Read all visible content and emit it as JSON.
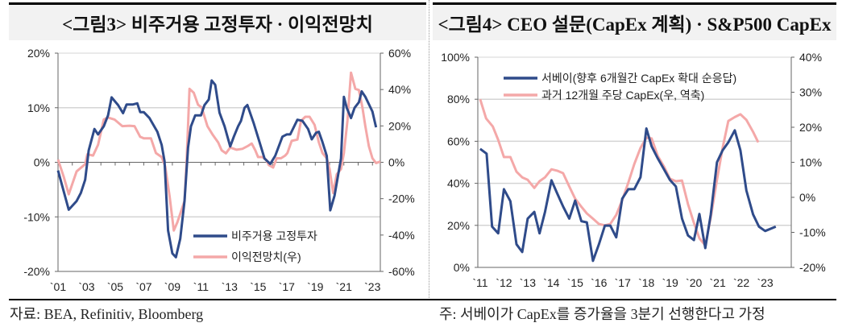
{
  "panels": {
    "left_title": "<그림3> 비주거용 고정투자 · 이익전망치",
    "right_title": "<그림4> CEO 설문(CapEx 계획) · S&P500 CapEx"
  },
  "footer": {
    "source": "자료: BEA, Refinitiv, Bloomberg",
    "note": "주: 서베이가 CapEx를 증가율을 3분기 선행한다고 가정"
  },
  "colors": {
    "blue": "#2f4b8a",
    "pink": "#f4a8a8"
  },
  "chart_data": [
    {
      "type": "line",
      "title": "<그림3> 비주거용 고정투자 · 이익전망치",
      "x_ticks": [
        "`01",
        "`03",
        "`05",
        "`07",
        "`09",
        "`11",
        "`13",
        "`15",
        "`17",
        "`19",
        "`21",
        "`23"
      ],
      "x_tick_values": [
        2001,
        2003,
        2005,
        2007,
        2009,
        2011,
        2013,
        2015,
        2017,
        2019,
        2021,
        2023
      ],
      "xlim": [
        2001,
        2023.55
      ],
      "y_left": {
        "ticks": [
          "20%",
          "10%",
          "0%",
          "-10%",
          "-20%"
        ],
        "lim": [
          -20,
          20
        ]
      },
      "y_right": {
        "ticks": [
          "60%",
          "40%",
          "20%",
          "0%",
          "-20%",
          "-40%",
          "-60%"
        ],
        "lim": [
          -60,
          60
        ]
      },
      "grid": true,
      "legend": "bottom-right",
      "series": [
        {
          "name": "비주거용 고정투자",
          "axis": "left",
          "color": "#2f4b8a",
          "x": [
            2001.0,
            2001.75,
            2002.3,
            2002.6,
            2002.9,
            2003.15,
            2003.55,
            2003.8,
            2004.2,
            2004.5,
            2004.75,
            2005.2,
            2005.55,
            2005.8,
            2006.25,
            2006.55,
            2006.75,
            2007.0,
            2007.4,
            2007.95,
            2008.25,
            2008.45,
            2008.7,
            2009.0,
            2009.25,
            2009.55,
            2009.85,
            2010.1,
            2010.3,
            2010.6,
            2011.0,
            2011.25,
            2011.55,
            2011.75,
            2012.0,
            2012.3,
            2012.65,
            2013.05,
            2013.3,
            2013.6,
            2013.8,
            2014.05,
            2014.25,
            2014.7,
            2015.1,
            2015.45,
            2015.85,
            2016.2,
            2016.7,
            2017.0,
            2017.25,
            2017.75,
            2018.1,
            2018.5,
            2018.75,
            2019.05,
            2019.25,
            2019.5,
            2019.8,
            2020.05,
            2020.35,
            2020.8,
            2021.0,
            2021.2,
            2021.5,
            2021.75,
            2022.05,
            2022.25,
            2022.5,
            2023.0,
            2023.25
          ],
          "y": [
            -1.5,
            -8.7,
            -7.1,
            -5.6,
            -3.2,
            2.2,
            6.1,
            5.1,
            6.6,
            8.6,
            11.9,
            10.5,
            9.0,
            10.6,
            10.6,
            10.8,
            9.2,
            9.2,
            8.1,
            5.6,
            3.2,
            0.2,
            -12.5,
            -16.7,
            -17.4,
            -14.0,
            -7.1,
            2.7,
            6.6,
            8.6,
            8.6,
            10.5,
            11.5,
            15.0,
            14.2,
            9.1,
            6.6,
            2.9,
            4.7,
            6.6,
            7.6,
            10.0,
            10.5,
            7.1,
            3.7,
            0.7,
            -0.3,
            1.2,
            4.7,
            5.1,
            5.1,
            7.8,
            7.6,
            6.1,
            4.2,
            5.4,
            5.6,
            3.7,
            1.2,
            -8.8,
            -6.1,
            0.7,
            12.0,
            10.0,
            8.1,
            10.0,
            11.0,
            13.0,
            12.0,
            9.3,
            6.4
          ]
        },
        {
          "name": "이익전망치(우)",
          "axis": "right",
          "color": "#f4a8a8",
          "x": [
            2001.0,
            2001.4,
            2001.75,
            2002.3,
            2002.9,
            2003.05,
            2003.45,
            2003.8,
            2004.2,
            2004.5,
            2004.95,
            2005.5,
            2006.0,
            2006.35,
            2006.75,
            2007.0,
            2007.5,
            2007.85,
            2008.25,
            2008.5,
            2008.8,
            2009.1,
            2009.35,
            2009.85,
            2010.0,
            2010.2,
            2010.5,
            2010.8,
            2011.05,
            2011.45,
            2011.8,
            2012.2,
            2012.45,
            2012.75,
            2013.05,
            2013.5,
            2013.9,
            2014.25,
            2014.55,
            2014.8,
            2015.0,
            2015.3,
            2015.55,
            2015.75,
            2016.05,
            2016.3,
            2016.6,
            2016.9,
            2017.05,
            2017.35,
            2017.75,
            2018.0,
            2018.3,
            2018.6,
            2018.95,
            2019.25,
            2019.5,
            2019.8,
            2020.0,
            2020.25,
            2020.5,
            2020.8,
            2021.0,
            2021.25,
            2021.5,
            2021.8,
            2022.05,
            2022.3,
            2022.5,
            2022.75,
            2023.0,
            2023.25,
            2023.55
          ],
          "y": [
            1.5,
            -8.0,
            -17.6,
            -5.0,
            -1.0,
            4.4,
            3.7,
            9.6,
            23.5,
            24.6,
            23.5,
            19.9,
            20.1,
            19.9,
            14.0,
            13.2,
            13.2,
            5.1,
            2.9,
            -2.2,
            -18.4,
            -37.5,
            -33.0,
            -21.3,
            0.7,
            40.4,
            38.2,
            31.6,
            30.1,
            19.9,
            15.4,
            11.0,
            6.6,
            4.9,
            8.1,
            6.9,
            7.4,
            8.8,
            10.3,
            6.6,
            2.9,
            2.9,
            1.5,
            -1.5,
            -2.9,
            2.2,
            2.2,
            3.7,
            5.1,
            11.8,
            12.5,
            22.8,
            25.0,
            25.0,
            20.6,
            11.0,
            5.1,
            2.2,
            -3.7,
            -16.9,
            -6.6,
            -3.7,
            5.1,
            22.8,
            49.3,
            40.4,
            39.7,
            30.1,
            19.9,
            8.8,
            2.2,
            -0.4,
            0.4
          ]
        }
      ]
    },
    {
      "type": "line",
      "title": "<그림4> CEO 설문(CapEx 계획) · S&P500 CapEx",
      "x_ticks": [
        "`11",
        "`12",
        "`13",
        "`14",
        "`15",
        "`16",
        "`17",
        "`18",
        "`19",
        "`20",
        "`21",
        "`22",
        "`23"
      ],
      "x_tick_values": [
        2011,
        2012,
        2013,
        2014,
        2015,
        2016,
        2017,
        2018,
        2019,
        2020,
        2021,
        2022,
        2023
      ],
      "xlim": [
        2010.9,
        2024.1
      ],
      "y_left": {
        "ticks": [
          "100%",
          "80%",
          "60%",
          "40%",
          "20%",
          "0%"
        ],
        "lim": [
          0,
          100
        ]
      },
      "y_right": {
        "ticks": [
          "40%",
          "30%",
          "20%",
          "10%",
          "0%",
          "-10%",
          "-20%"
        ],
        "lim": [
          -20,
          40
        ]
      },
      "grid": true,
      "legend": "top",
      "series": [
        {
          "name": "서베이(향후 6개월간 CapEx 확대 순응답)",
          "axis": "left",
          "color": "#2f4b8a",
          "x": [
            2011.0,
            2011.27,
            2011.5,
            2011.76,
            2012.0,
            2012.27,
            2012.53,
            2012.77,
            2013.0,
            2013.28,
            2013.5,
            2013.73,
            2014.0,
            2014.24,
            2014.49,
            2014.75,
            2015.0,
            2015.26,
            2015.49,
            2015.75,
            2016.0,
            2016.25,
            2016.48,
            2016.73,
            2016.98,
            2017.24,
            2017.49,
            2017.75,
            2018.0,
            2018.22,
            2018.48,
            2018.74,
            2018.99,
            2019.24,
            2019.5,
            2019.75,
            2020.0,
            2020.23,
            2020.48,
            2020.71,
            2020.97,
            2021.21,
            2021.45,
            2021.72,
            2021.96,
            2022.21,
            2022.49,
            2022.74,
            2023.0,
            2023.45
          ],
          "y": [
            56.4,
            54.1,
            19.4,
            16.2,
            37.2,
            31.5,
            11.0,
            7.3,
            23.2,
            26.4,
            16.2,
            26.4,
            41.4,
            35.3,
            29.0,
            23.2,
            31.8,
            22.0,
            21.4,
            3.1,
            11.0,
            19.9,
            19.9,
            14.3,
            32.7,
            37.2,
            37.2,
            42.9,
            66.1,
            57.6,
            51.8,
            46.7,
            41.6,
            38.5,
            23.2,
            15.2,
            13.0,
            25.4,
            9.2,
            25.2,
            50.0,
            55.7,
            59.5,
            65.2,
            55.7,
            36.6,
            25.2,
            19.4,
            17.3,
            19.4
          ]
        },
        {
          "name": "과거 12개월 주당 CapEx(우, 역축)",
          "axis": "right",
          "color": "#f4a8a8",
          "x": [
            2011.0,
            2011.25,
            2011.53,
            2011.76,
            2012.0,
            2012.27,
            2012.53,
            2012.77,
            2013.0,
            2013.28,
            2013.5,
            2013.73,
            2014.0,
            2014.24,
            2014.49,
            2014.75,
            2015.0,
            2015.26,
            2015.49,
            2015.75,
            2016.0,
            2016.25,
            2016.48,
            2016.73,
            2016.98,
            2017.24,
            2017.49,
            2017.75,
            2018.0,
            2018.22,
            2018.48,
            2018.74,
            2018.99,
            2019.24,
            2019.5,
            2019.75,
            2020.0,
            2020.23,
            2020.48,
            2020.71,
            2020.97,
            2021.21,
            2021.45,
            2021.72,
            2021.96,
            2022.21,
            2022.49,
            2022.71
          ],
          "y": [
            28.0,
            22.5,
            20.2,
            16.4,
            11.5,
            11.5,
            7.3,
            5.7,
            5.0,
            2.7,
            4.6,
            5.7,
            8.0,
            7.6,
            6.9,
            3.1,
            -0.4,
            -2.7,
            -4.6,
            -6.1,
            -7.6,
            -8.0,
            -7.6,
            -5.0,
            -0.8,
            4.2,
            9.5,
            14.1,
            17.0,
            16.8,
            11.8,
            8.8,
            5.3,
            4.6,
            4.8,
            -1.9,
            -7.3,
            -11.7,
            -13.7,
            -5.7,
            5.0,
            14.1,
            21.8,
            22.9,
            23.7,
            22.1,
            18.7,
            15.7
          ]
        }
      ]
    }
  ]
}
